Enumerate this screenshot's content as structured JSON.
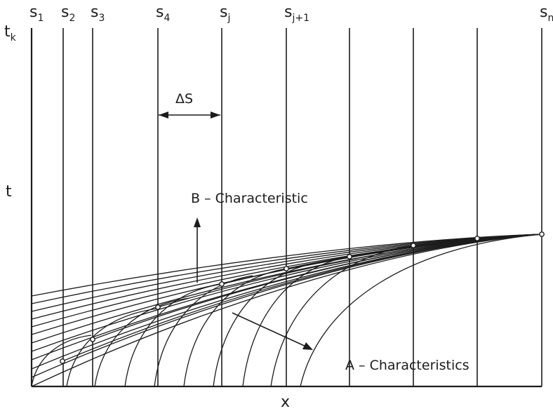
{
  "stations": [
    {
      "base": "s",
      "sub": "1"
    },
    {
      "base": "s",
      "sub": "2"
    },
    {
      "base": "s",
      "sub": "3"
    },
    {
      "base": "s",
      "sub": "4"
    },
    {
      "base": "s",
      "sub": "j"
    },
    {
      "base": "s",
      "sub": "j+1"
    },
    {
      "base": "",
      "sub": ""
    },
    {
      "base": "",
      "sub": ""
    },
    {
      "base": "",
      "sub": ""
    },
    {
      "base": "s",
      "sub": "n"
    }
  ],
  "axes": {
    "t_top": {
      "base": "t",
      "sub": "k"
    },
    "t_mid": "t",
    "x": "x"
  },
  "labels": {
    "delta_s": "ΔS",
    "b_characteristic": "B – Characteristic",
    "a_characteristics": "A – Characteristics"
  },
  "colors": {
    "ink": "#1c1c1c",
    "paper": "#ffffff"
  }
}
